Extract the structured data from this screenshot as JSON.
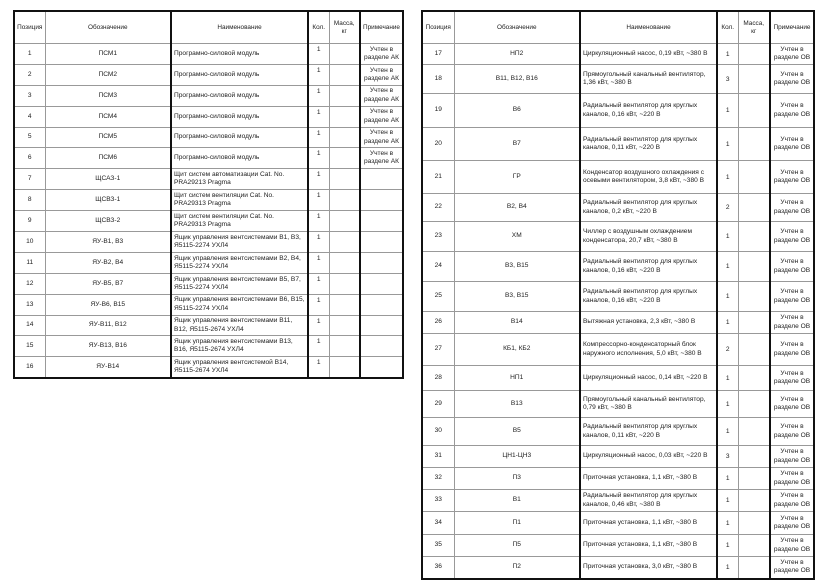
{
  "headers": [
    "Позиция",
    "Обозначение",
    "Наименование",
    "Кол.",
    "Масса, кг",
    "Примечание"
  ],
  "left_table": [
    [
      "1",
      "ПСМ1",
      "Програмно-силовой модуль",
      "1",
      "",
      "Учтен в разделе АК"
    ],
    [
      "2",
      "ПСМ2",
      "Програмно-силовой модуль",
      "1",
      "",
      "Учтен в разделе АК"
    ],
    [
      "3",
      "ПСМ3",
      "Програмно-силовой модуль",
      "1",
      "",
      "Учтен в разделе АК"
    ],
    [
      "4",
      "ПСМ4",
      "Програмно-силовой модуль",
      "1",
      "",
      "Учтен в разделе АК"
    ],
    [
      "5",
      "ПСМ5",
      "Програмно-силовой модуль",
      "1",
      "",
      "Учтен в разделе АК"
    ],
    [
      "6",
      "ПСМ6",
      "Програмно-силовой модуль",
      "1",
      "",
      "Учтен в разделе АК"
    ],
    [
      "7",
      "ЩСАЗ-1",
      "Щит систем автоматизации Cat. No. PRA29213 Pragma",
      "1",
      "",
      ""
    ],
    [
      "8",
      "ЩСВЗ-1",
      "Щит систем вентиляции Cat. No. PRA29313 Pragma",
      "1",
      "",
      ""
    ],
    [
      "9",
      "ЩСВЗ-2",
      "Щит систем вентиляции Cat. No. PRA29313 Pragma",
      "1",
      "",
      ""
    ],
    [
      "10",
      "ЯУ-В1, В3",
      "Ящик управления вентсистемами В1, В3, Я5115-2274 УХЛ4",
      "1",
      "",
      ""
    ],
    [
      "11",
      "ЯУ-В2, В4",
      "Ящик управления вентсистемами В2, В4, Я5115-2274 УХЛ4",
      "1",
      "",
      ""
    ],
    [
      "12",
      "ЯУ-В5, В7",
      "Ящик управления вентсистемами В5, В7, Я5115-2274 УХЛ4",
      "1",
      "",
      ""
    ],
    [
      "13",
      "ЯУ-В6, В15",
      "Ящик управления вентсистемами В6, В15, Я5115-2274 УХЛ4",
      "1",
      "",
      ""
    ],
    [
      "14",
      "ЯУ-В11, В12",
      "Ящик управления вентсистемами В11, В12, Я5115-2674 УХЛ4",
      "1",
      "",
      ""
    ],
    [
      "15",
      "ЯУ-В13, В16",
      "Ящик управления вентсистемами В13, В16, Я5115-2674 УХЛ4",
      "1",
      "",
      ""
    ],
    [
      "16",
      "ЯУ-В14",
      "Ящик управления вентсистемой В14, Я5115-2674 УХЛ4",
      "1",
      "",
      ""
    ]
  ],
  "right_table": [
    [
      "17",
      "НП2",
      "Циркуляционный насос, 0,19 кВт, ~380 В",
      "1",
      "",
      "Учтен в разделе ОВ"
    ],
    [
      "18",
      "В11, В12, В16",
      "Прямоугольный канальный вентилятор, 1,36 кВт, ~380 В",
      "3",
      "",
      "Учтен в разделе ОВ"
    ],
    [
      "19",
      "В6",
      "Радиальный вентилятор для круглых каналов, 0,16 кВт, ~220 В",
      "1",
      "",
      "Учтен в разделе ОВ"
    ],
    [
      "20",
      "В7",
      "Радиальный вентилятор для круглых каналов, 0,11 кВт, ~220 В",
      "1",
      "",
      "Учтен в разделе ОВ"
    ],
    [
      "21",
      "ГР",
      "Конденсатор воздушного охлаждения с осевыми вентилятором, 3,8 кВт, ~380 В",
      "1",
      "",
      "Учтен в разделе ОВ"
    ],
    [
      "22",
      "В2, В4",
      "Радиальный вентилятор для круглых каналов, 0,2 кВт, ~220 В",
      "2",
      "",
      "Учтен в разделе ОВ"
    ],
    [
      "23",
      "ХМ",
      "Чиллер с воздушным охлаждением конденсатора, 20,7 кВт, ~380 В",
      "1",
      "",
      "Учтен в разделе ОВ"
    ],
    [
      "24",
      "В3, В15",
      "Радиальный вентилятор для круглых каналов, 0,16 кВт, ~220 В",
      "1",
      "",
      "Учтен в разделе ОВ"
    ],
    [
      "25",
      "В3, В15",
      "Радиальный вентилятор для круглых каналов, 0,16 кВт, ~220 В",
      "1",
      "",
      "Учтен в разделе ОВ"
    ],
    [
      "26",
      "В14",
      "Вытяжная установка, 2,3 кВт, ~380 В",
      "1",
      "",
      "Учтен в разделе ОВ"
    ],
    [
      "27",
      "КБ1, КБ2",
      "Компрессорно-конденсаторный блок наружного исполнения, 5,0 кВт, ~380 В",
      "2",
      "",
      "Учтен в разделе ОВ"
    ],
    [
      "28",
      "НП1",
      "Циркуляционный насос, 0,14 кВт, ~220 В",
      "1",
      "",
      "Учтен в разделе ОВ"
    ],
    [
      "29",
      "В13",
      "Прямоугольный канальный вентилятор, 0,79 кВт, ~380 В",
      "1",
      "",
      "Учтен в разделе ОВ"
    ],
    [
      "30",
      "В5",
      "Радиальный вентилятор для круглых каналов, 0,11 кВт, ~220 В",
      "1",
      "",
      "Учтен в разделе ОВ"
    ],
    [
      "31",
      "ЦН1-ЦН3",
      "Циркуляционный насос, 0,03 кВт, ~220 В",
      "3",
      "",
      "Учтен в разделе ОВ"
    ],
    [
      "32",
      "П3",
      "Приточная установка, 1,1 кВт, ~380 В",
      "1",
      "",
      "Учтен в разделе ОВ"
    ],
    [
      "33",
      "В1",
      "Радиальный вентилятор для круглых каналов, 0,46 кВт, ~380 В",
      "1",
      "",
      "Учтен в разделе ОВ"
    ],
    [
      "34",
      "П1",
      "Приточная установка, 1,1 кВт, ~380 В",
      "1",
      "",
      "Учтен в разделе ОВ"
    ],
    [
      "35",
      "П5",
      "Приточная установка, 1,1 кВт, ~380 В",
      "1",
      "",
      "Учтен в разделе ОВ"
    ],
    [
      "36",
      "П2",
      "Приточная установка, 3,0 кВт, ~380 В",
      "1",
      "",
      "Учтен в разделе ОВ"
    ]
  ]
}
